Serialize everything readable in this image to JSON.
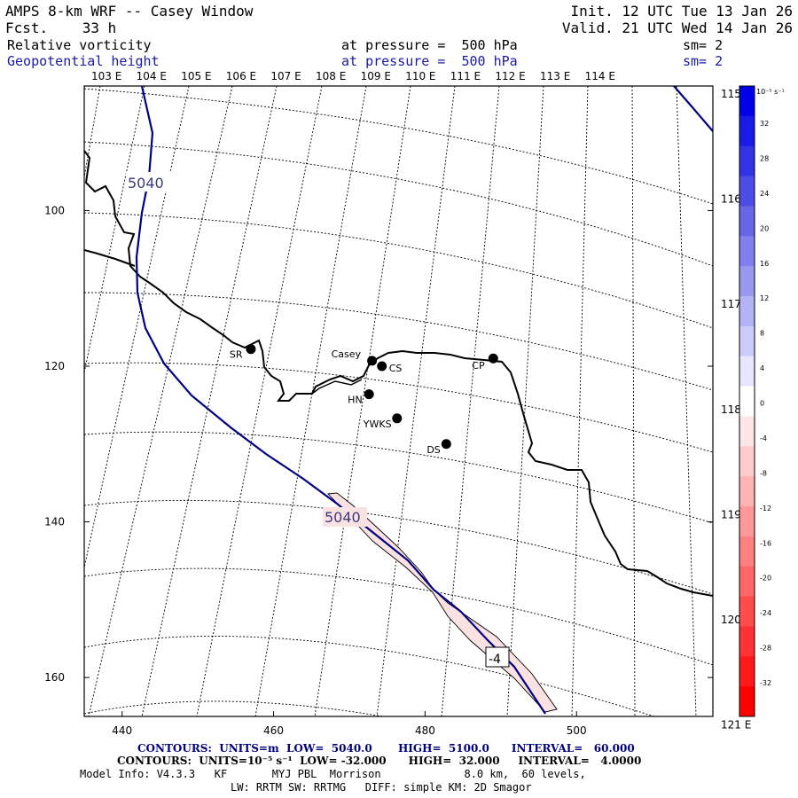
{
  "header": {
    "title": "AMPS 8-km WRF -- Casey Window",
    "forecast": "Fcst.    33 h",
    "init": "Init. 12 UTC Tue 13 Jan 26",
    "valid": "Valid. 21 UTC Wed 14 Jan 26",
    "field1": {
      "name": "Relative vorticity",
      "level": "at pressure =  500 hPa",
      "smooth": "sm= 2"
    },
    "field2": {
      "name": "Geopotential height",
      "level": "at pressure =  500 hPa",
      "smooth": "sm= 2"
    }
  },
  "axes": {
    "top_lon_labels": [
      "103 E",
      "104 E",
      "105 E",
      "106 E",
      "107 E",
      "108 E",
      "109 E",
      "110 E",
      "111 E",
      "112 E",
      "113 E",
      "114 E"
    ],
    "right_lon_labels": [
      "115 E",
      "116 E",
      "117 E",
      "118 E",
      "119 E",
      "120 E",
      "121 E"
    ],
    "x_ticks": [
      440,
      460,
      480,
      500
    ],
    "y_ticks": [
      100,
      120,
      140,
      160
    ],
    "x_range": [
      435,
      518
    ],
    "y_range": [
      84,
      165
    ]
  },
  "stations": [
    {
      "id": "SR",
      "x": 457.0,
      "y": 117.8
    },
    {
      "id": "Casey",
      "x": 473.0,
      "y": 119.3
    },
    {
      "id": "CS",
      "x": 474.3,
      "y": 120.0
    },
    {
      "id": "CP",
      "x": 489.0,
      "y": 119.0
    },
    {
      "id": "HN",
      "x": 472.6,
      "y": 123.6
    },
    {
      "id": "YWKS",
      "x": 476.3,
      "y": 126.7
    },
    {
      "id": "DS",
      "x": 482.8,
      "y": 130.0
    }
  ],
  "contour_labels": {
    "upper_5040": "5040",
    "lower_5040": "5040",
    "negative_value": "-4"
  },
  "colorbar": {
    "unit_label": "10⁻⁵ s⁻¹",
    "labels": [
      "32",
      "28",
      "24",
      "20",
      "16",
      "12",
      "8",
      "4",
      "0",
      "-4",
      "-8",
      "-12",
      "-16",
      "-20",
      "-24",
      "-28",
      "-32"
    ],
    "colors": [
      "#0000e6",
      "#1a1ae6",
      "#3333e6",
      "#4d4de6",
      "#6666e6",
      "#8080ee",
      "#9999f0",
      "#b3b3f5",
      "#ccccfa",
      "#e6e6ff",
      "#ffffff",
      "#ffe6e6",
      "#ffcccc",
      "#ffb3b3",
      "#ff9999",
      "#ff8080",
      "#ff6666",
      "#ff4d4d",
      "#ff3333",
      "#ff1a1a",
      "#ff0000"
    ]
  },
  "footer": {
    "contours_height": "CONTOURS:  UNITS=m  LOW=  5040.0       HIGH=  5100.0      INTERVAL=   60.000",
    "contours_vort": "CONTOURS:  UNITS=10⁻⁵ s⁻¹  LOW= -32.000      HIGH=  32.000     INTERVAL=   4.0000",
    "model_info": "Model Info: V4.3.3   KF       MYJ PBL  Morrison             8.0 km,  60 levels,",
    "physics": "LW: RRTM SW: RRTMG   DIFF: simple KM: 2D Smagor"
  }
}
